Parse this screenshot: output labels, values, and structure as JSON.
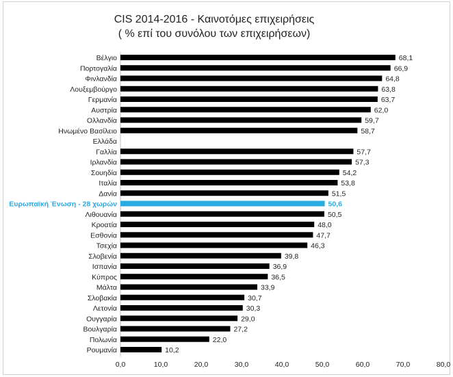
{
  "chart_data": {
    "type": "bar",
    "orientation": "horizontal",
    "title": "CIS 2014-2016 - Καινοτόμες επιχειρήσεις",
    "subtitle": "( % επί του συνόλου των επιχειρήσεων)",
    "categories": [
      "Βέλγιο",
      "Πορτογαλία",
      "Φινλανδία",
      "Λουξεμβούργο",
      "Γερμανία",
      "Αυστρία",
      "Ολλανδία",
      "Ηνωμένο Βασίλειο",
      "Ελλάδα",
      "Γαλλία",
      "Ιρλανδία",
      "Σουηδία",
      "Ιταλία",
      "Δανία",
      "Ευρωπαϊκή Ένωση - 28 χωρών",
      "Λιθουανία",
      "Κροατία",
      "Εσθονία",
      "Τσεχία",
      "Σλοβενία",
      "Ισπανία",
      "Κύπρος",
      "Μάλτα",
      "Σλοβακία",
      "Λετονία",
      "Ουγγαρία",
      "Βουλγαρία",
      "Πολωνία",
      "Ρουμανία"
    ],
    "values": [
      68.1,
      66.9,
      64.8,
      63.8,
      63.7,
      62.0,
      59.7,
      58.7,
      null,
      57.7,
      57.3,
      54.2,
      53.8,
      51.5,
      50.6,
      50.5,
      48.0,
      47.7,
      46.3,
      39.8,
      36.9,
      36.5,
      33.9,
      30.7,
      30.3,
      29.0,
      27.2,
      22.0,
      10.2
    ],
    "value_labels": [
      "68,1",
      "66,9",
      "64,8",
      "63,8",
      "63,7",
      "62,0",
      "59,7",
      "58,7",
      "",
      "57,7",
      "57,3",
      "54,2",
      "53,8",
      "51,5",
      "50,6",
      "50,5",
      "48,0",
      "47,7",
      "46,3",
      "39,8",
      "36,9",
      "36,5",
      "33,9",
      "30,7",
      "30,3",
      "29,0",
      "27,2",
      "22,0",
      "10,2"
    ],
    "highlight_index": 14,
    "xlim": [
      0,
      80
    ],
    "xticks": [
      "0,0",
      "10,0",
      "20,0",
      "30,0",
      "40,0",
      "50,0",
      "60,0",
      "70,0",
      "80,0"
    ],
    "grid": false,
    "colors": {
      "bar": "#000000",
      "highlight": "#29abe2"
    }
  }
}
